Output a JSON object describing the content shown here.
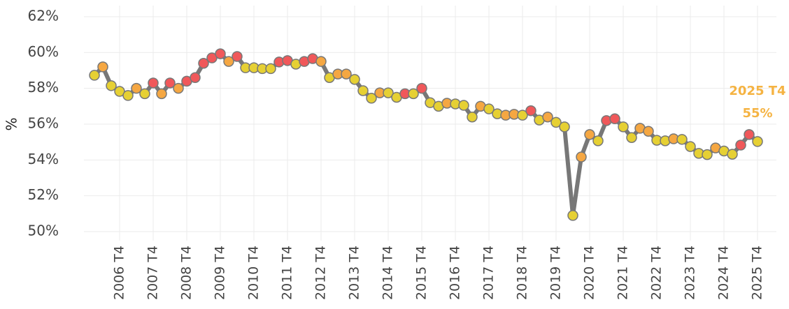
{
  "chart_data": {
    "type": "line",
    "y_label": "%",
    "categories": [
      null,
      null,
      null,
      "2006 T4",
      null,
      null,
      null,
      "2007 T4",
      null,
      null,
      null,
      "2008 T4",
      null,
      null,
      null,
      "2009 T4",
      null,
      null,
      null,
      "2010 T4",
      null,
      null,
      null,
      "2011 T4",
      null,
      null,
      null,
      "2012 T4",
      null,
      null,
      null,
      "2013 T4",
      null,
      null,
      null,
      "2014 T4",
      null,
      null,
      null,
      "2015 T4",
      null,
      null,
      null,
      "2016 T4",
      null,
      null,
      null,
      "2017 T4",
      null,
      null,
      null,
      "2018 T4",
      null,
      null,
      null,
      "2019 T4",
      null,
      null,
      null,
      "2020 T4",
      null,
      null,
      null,
      "2021 T4",
      null,
      null,
      null,
      "2022 T4",
      null,
      null,
      null,
      "2023 T4",
      null,
      null,
      null,
      "2024 T4",
      null,
      null,
      null,
      "2025 T4"
    ],
    "series": [
      {
        "color": "#777777",
        "values": [
          58.73,
          59.2,
          58.15,
          57.83,
          57.6,
          58.0,
          57.7,
          58.3,
          57.7,
          58.3,
          58.0,
          58.4,
          58.6,
          59.4,
          59.7,
          59.93,
          59.5,
          59.78,
          59.15,
          59.15,
          59.1,
          59.1,
          59.47,
          59.55,
          59.35,
          59.5,
          59.66,
          59.5,
          58.6,
          58.8,
          58.8,
          58.5,
          57.87,
          57.45,
          57.75,
          57.75,
          57.5,
          57.7,
          57.7,
          58.0,
          57.2,
          57.0,
          57.17,
          57.13,
          57.05,
          56.4,
          57.0,
          56.85,
          56.58,
          56.5,
          56.55,
          56.5,
          56.75,
          56.23,
          56.4,
          56.1,
          55.85,
          50.9,
          54.17,
          55.42,
          55.07,
          56.2,
          56.3,
          55.85,
          55.25,
          55.77,
          55.6,
          55.1,
          55.07,
          55.18,
          55.15,
          54.75,
          54.37,
          54.3,
          54.67,
          54.5,
          54.32,
          54.83,
          55.42,
          55.03
        ],
        "point_colors": [
          "#e6d033",
          "#f5a742",
          "#e6d033",
          "#e6d033",
          "#e6d033",
          "#f5a742",
          "#e6d033",
          "#f0585a",
          "#f5a742",
          "#f0585a",
          "#f5a742",
          "#f0585a",
          "#f0585a",
          "#f0585a",
          "#f0585a",
          "#f0585a",
          "#f5a742",
          "#f0585a",
          "#e6d033",
          "#e6d033",
          "#e6d033",
          "#e6d033",
          "#f0585a",
          "#f0585a",
          "#e6d033",
          "#f0585a",
          "#f0585a",
          "#f5a742",
          "#e6d033",
          "#f5a742",
          "#f5a742",
          "#e6d033",
          "#e6d033",
          "#e6d033",
          "#f5a742",
          "#e6d033",
          "#e6d033",
          "#f0585a",
          "#e6d033",
          "#f0585a",
          "#e6d033",
          "#e6d033",
          "#f5a742",
          "#e6d033",
          "#e6d033",
          "#e6d033",
          "#f5a742",
          "#e6d033",
          "#e6d033",
          "#f5a742",
          "#f5a742",
          "#e6d033",
          "#f0585a",
          "#e6d033",
          "#f5a742",
          "#e6d033",
          "#e6d033",
          "#e6d033",
          "#f5a742",
          "#f5a742",
          "#e6d033",
          "#f0585a",
          "#f0585a",
          "#e6d033",
          "#e6d033",
          "#f5a742",
          "#f5a742",
          "#e6d033",
          "#e6d033",
          "#f5a742",
          "#e6d033",
          "#e6d033",
          "#e6d033",
          "#e6d033",
          "#f5a742",
          "#e6d033",
          "#e6d033",
          "#f0585a",
          "#f0585a",
          "#e6d033"
        ]
      }
    ],
    "ylim": [
      50,
      62
    ],
    "yticks": [
      {
        "value": 50,
        "label": "50%"
      },
      {
        "value": 52,
        "label": "52%"
      },
      {
        "value": 54,
        "label": "54%"
      },
      {
        "value": 56,
        "label": "56%"
      },
      {
        "value": 58,
        "label": "58%"
      },
      {
        "value": 60,
        "label": "60%"
      },
      {
        "value": 62,
        "label": "62%"
      }
    ],
    "grid": true,
    "annotation": {
      "title": "2025 T4",
      "value_label": "55%",
      "color": "#f5b342"
    }
  }
}
